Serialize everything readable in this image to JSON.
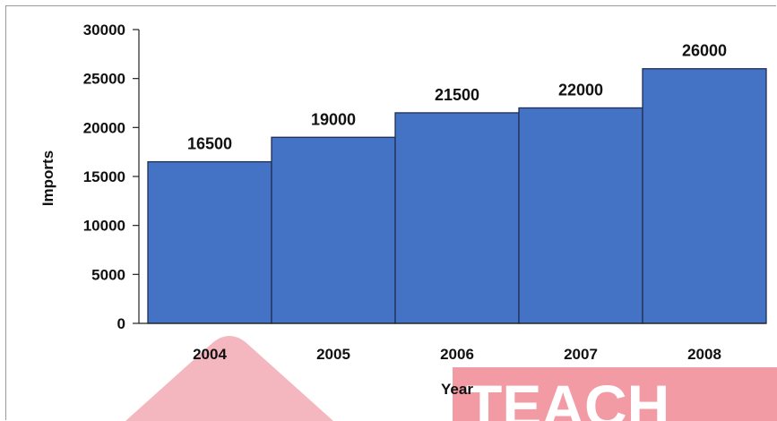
{
  "chart_data": {
    "type": "bar",
    "categories": [
      "2004",
      "2005",
      "2006",
      "2007",
      "2008"
    ],
    "values": [
      16500,
      19000,
      21500,
      22000,
      26000
    ],
    "data_labels": [
      "16500",
      "19000",
      "21500",
      "22000",
      "26000"
    ],
    "yticks": [
      "0",
      "5000",
      "10000",
      "15000",
      "20000",
      "25000",
      "30000"
    ],
    "xlabel": "Year",
    "ylabel": "Imports",
    "ylim": [
      0,
      30000
    ],
    "bar_gap": "none",
    "grid": false,
    "colors": {
      "bar_fill": "#4472c4",
      "bar_stroke": "#1f2f55",
      "axis": "#222222"
    }
  },
  "watermark": {
    "text": "TEACH",
    "colors": [
      "#f2a9b4",
      "#f08a95"
    ]
  }
}
